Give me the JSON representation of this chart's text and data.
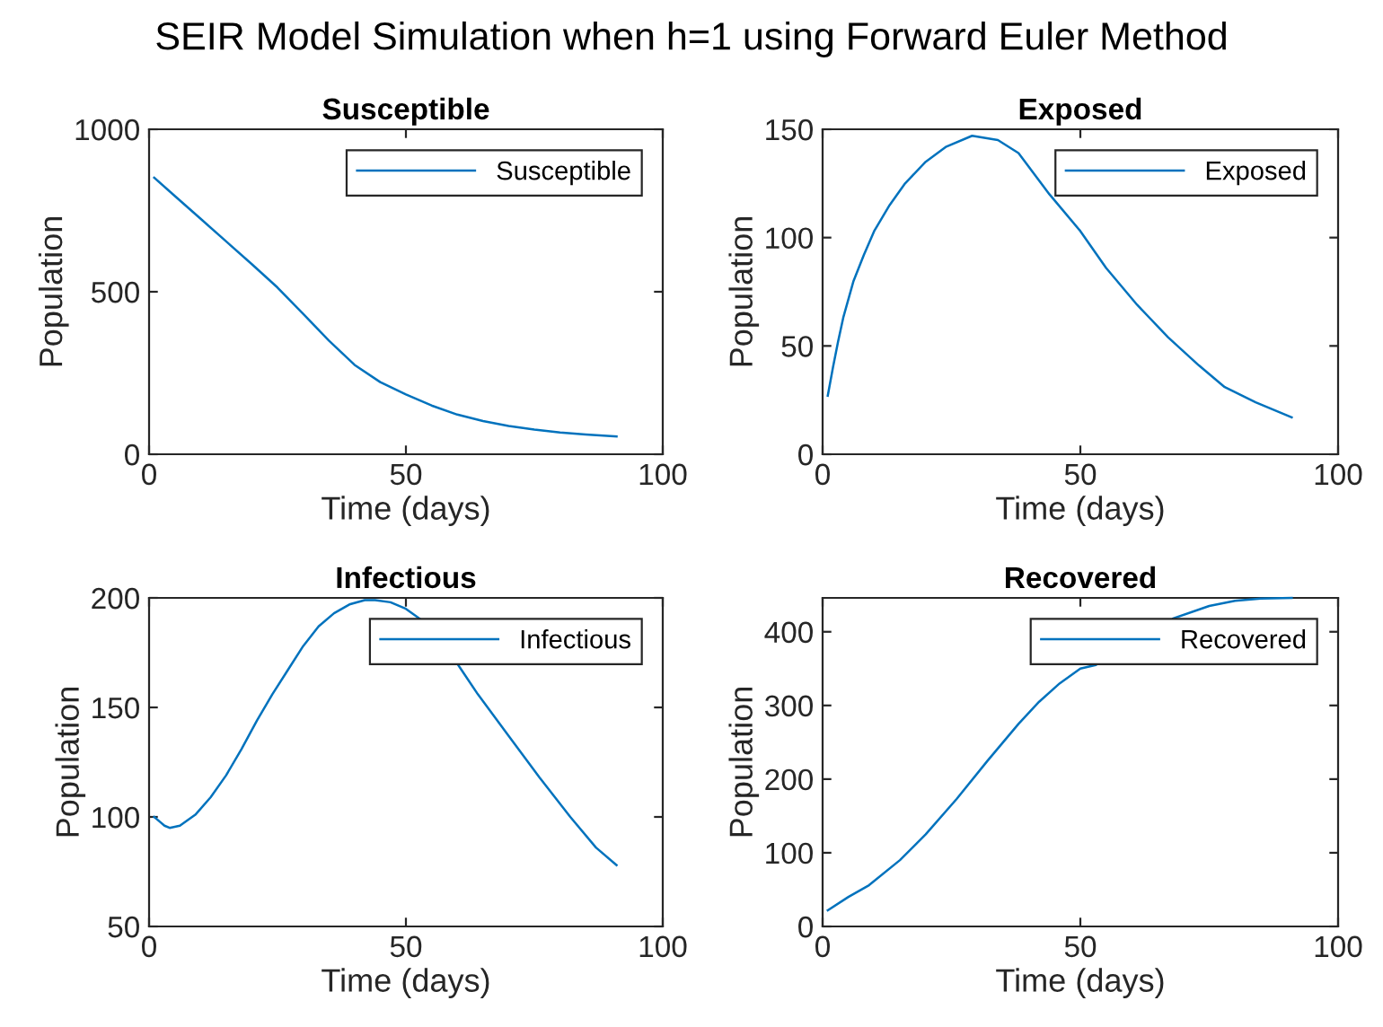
{
  "chart_data": [
    {
      "type": "line",
      "title": "Susceptible",
      "annotations": [
        "SEIR Model Simulation when h=1 using Forward Euler Method"
      ],
      "xlabel": "Time (days)",
      "ylabel": "Population",
      "xlim": [
        0,
        100
      ],
      "xticks": [
        0,
        50,
        100
      ],
      "ylim": [
        0,
        1000
      ],
      "yticks": [
        0,
        500,
        1000
      ],
      "legend": "top right",
      "grid": false,
      "series": [
        {
          "name": "Susceptible",
          "color": "#0072bd",
          "x": [
            1,
            5,
            10,
            15,
            20,
            25,
            30,
            35,
            40,
            45,
            50,
            55,
            60,
            65,
            70,
            75,
            80,
            85,
            91
          ],
          "values": [
            851,
            795,
            725,
            655,
            585,
            513,
            432,
            350,
            275,
            222,
            184,
            150,
            122,
            102,
            87,
            76,
            67,
            61,
            55
          ]
        }
      ]
    },
    {
      "type": "line",
      "title": "Exposed",
      "xlabel": "Time (days)",
      "ylabel": "Population",
      "xlim": [
        0,
        100
      ],
      "xticks": [
        0,
        50,
        100
      ],
      "ylim": [
        0,
        150
      ],
      "yticks": [
        0,
        50,
        100,
        150
      ],
      "legend": "top right",
      "grid": false,
      "series": [
        {
          "name": "Exposed",
          "color": "#0072bd",
          "x": [
            1,
            2,
            3,
            4,
            6,
            8,
            10,
            13,
            16,
            20,
            24,
            29,
            34,
            38,
            44,
            50,
            55,
            61,
            67,
            73,
            78,
            84,
            91
          ],
          "values": [
            27,
            40,
            52,
            63,
            80,
            92,
            103,
            115,
            125,
            135,
            142,
            147,
            145,
            139,
            120,
            103,
            86,
            69,
            54,
            41,
            31,
            24,
            17
          ]
        }
      ]
    },
    {
      "type": "line",
      "title": "Infectious",
      "xlabel": "Time (days)",
      "ylabel": "Population",
      "xlim": [
        0,
        100
      ],
      "xticks": [
        0,
        50,
        100
      ],
      "ylim": [
        50,
        200
      ],
      "yticks": [
        50,
        100,
        150,
        200
      ],
      "legend": "top right",
      "grid": false,
      "series": [
        {
          "name": "Infectious",
          "color": "#0072bd",
          "x": [
            1,
            2,
            3,
            4,
            6,
            9,
            12,
            15,
            18,
            21,
            24,
            27,
            30,
            33,
            36,
            39,
            42,
            44,
            47,
            50,
            53,
            56,
            60,
            64,
            70,
            76,
            82,
            87,
            91
          ],
          "values": [
            100,
            98,
            96,
            95,
            96,
            101,
            109,
            119,
            131,
            144,
            156,
            167,
            178,
            187,
            193,
            197,
            199,
            199,
            198,
            195,
            190,
            182,
            170,
            156,
            137,
            118,
            100,
            86,
            78
          ]
        }
      ]
    },
    {
      "type": "line",
      "title": "Recovered",
      "xlabel": "Time (days)",
      "ylabel": "Population",
      "xlim": [
        0,
        100
      ],
      "xticks": [
        0,
        50,
        100
      ],
      "ylim": [
        0,
        446
      ],
      "yticks": [
        0,
        100,
        200,
        300,
        400
      ],
      "legend": "top right",
      "grid": false,
      "series": [
        {
          "name": "Recovered",
          "color": "#0072bd",
          "x": [
            1,
            5,
            9,
            15,
            20,
            26,
            32,
            38,
            42,
            46,
            50,
            53,
            60,
            68,
            75,
            80,
            85,
            91
          ],
          "values": [
            22,
            40,
            56,
            90,
            125,
            173,
            225,
            275,
            305,
            330,
            350,
            355,
            null,
            418,
            435,
            442,
            445,
            446
          ]
        }
      ]
    }
  ]
}
